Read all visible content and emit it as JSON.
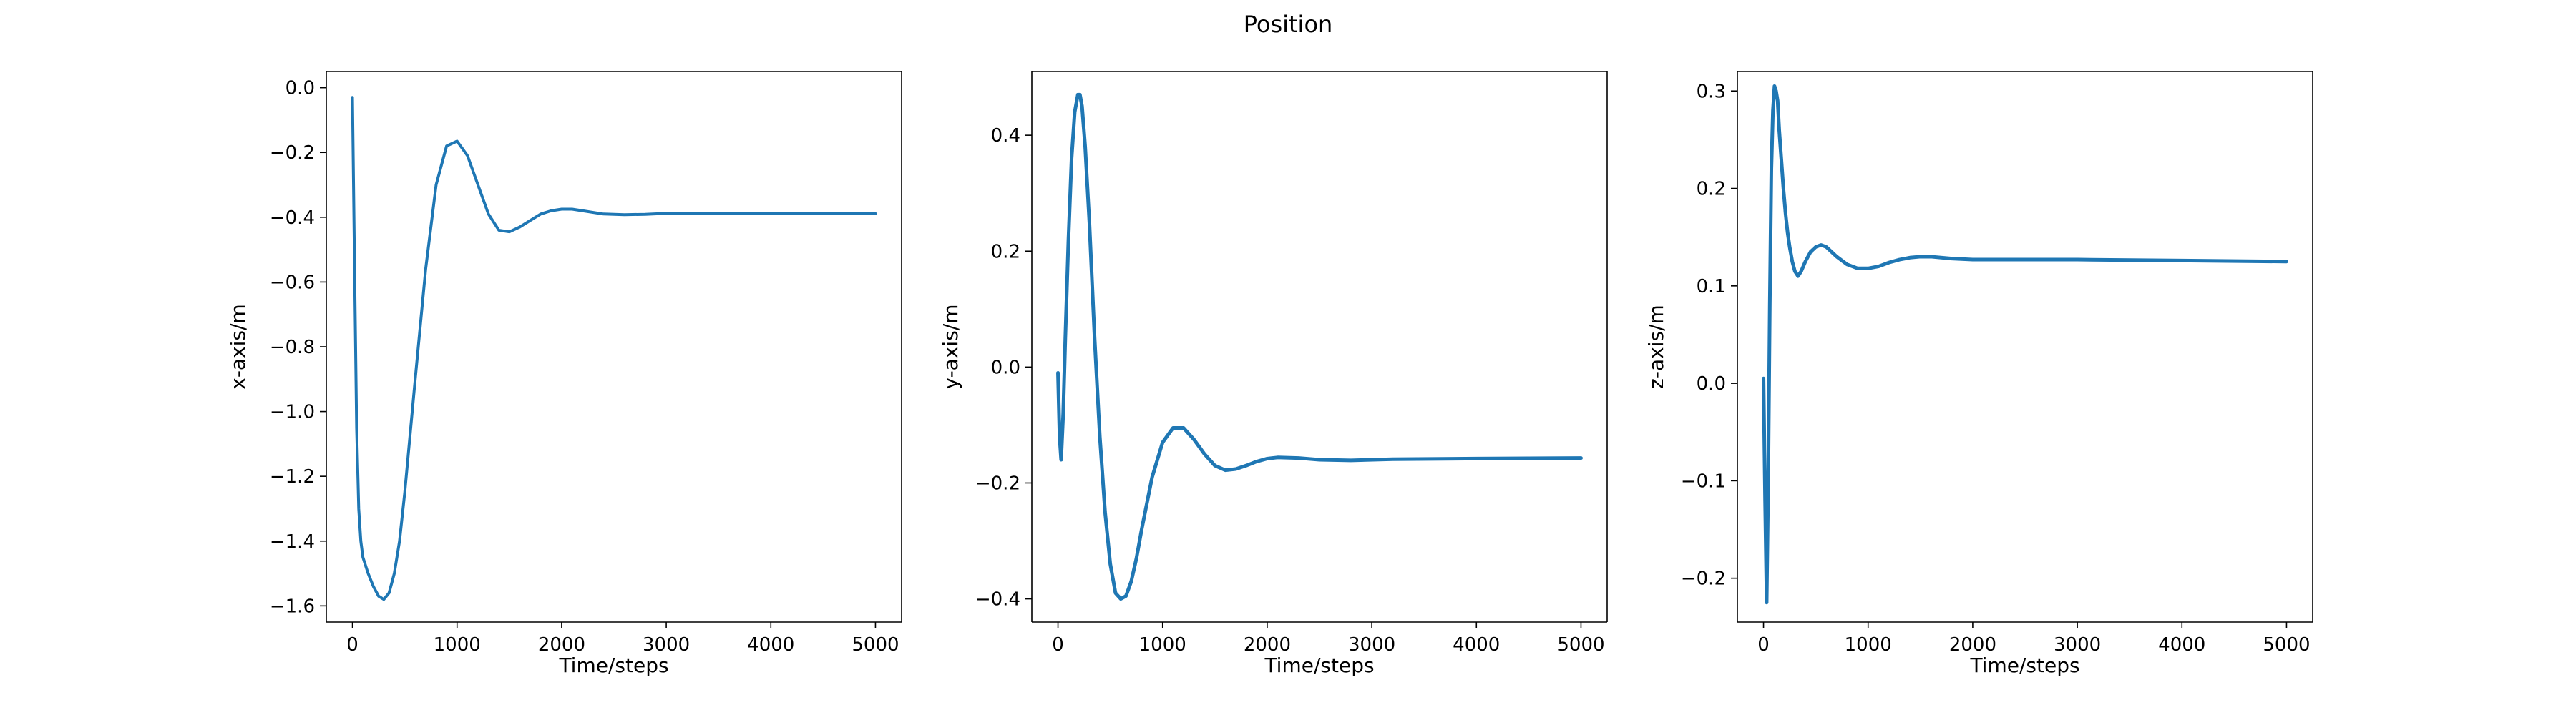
{
  "figure": {
    "title": "Position"
  },
  "chart_data": [
    {
      "type": "line",
      "xlabel": "Time/steps",
      "ylabel": "x-axis/m",
      "xlim": [
        -250,
        5250
      ],
      "ylim": [
        -1.65,
        0.05
      ],
      "xticks": [
        0,
        1000,
        2000,
        3000,
        4000,
        5000
      ],
      "xtick_labels": [
        "0",
        "1000",
        "2000",
        "3000",
        "4000",
        "5000"
      ],
      "yticks": [
        -1.6,
        -1.4,
        -1.2,
        -1.0,
        -0.8,
        -0.6,
        -0.4,
        -0.2,
        0.0
      ],
      "ytick_labels": [
        "−1.6",
        "−1.4",
        "−1.2",
        "−1.0",
        "−0.8",
        "−0.6",
        "−0.4",
        "−0.2",
        "0.0"
      ],
      "grid": false,
      "series": [
        {
          "color": "#1f77b4",
          "x": [
            0,
            20,
            40,
            60,
            80,
            100,
            150,
            200,
            250,
            300,
            350,
            400,
            450,
            500,
            600,
            700,
            800,
            900,
            1000,
            1100,
            1200,
            1300,
            1400,
            1500,
            1600,
            1700,
            1800,
            1900,
            2000,
            2100,
            2200,
            2400,
            2600,
            2800,
            3000,
            3200,
            3500,
            4000,
            4500,
            5000
          ],
          "y": [
            -0.03,
            -0.55,
            -1.05,
            -1.3,
            -1.4,
            -1.45,
            -1.5,
            -1.54,
            -1.57,
            -1.58,
            -1.56,
            -1.5,
            -1.4,
            -1.25,
            -0.9,
            -0.56,
            -0.3,
            -0.18,
            -0.165,
            -0.21,
            -0.3,
            -0.39,
            -0.44,
            -0.445,
            -0.43,
            -0.41,
            -0.39,
            -0.38,
            -0.375,
            -0.375,
            -0.38,
            -0.39,
            -0.392,
            -0.391,
            -0.388,
            -0.388,
            -0.389,
            -0.389,
            -0.389,
            -0.389
          ]
        }
      ]
    },
    {
      "type": "line",
      "xlabel": "Time/steps",
      "ylabel": "y-axis/m",
      "xlim": [
        -250,
        5250
      ],
      "ylim": [
        -0.44,
        0.51
      ],
      "xticks": [
        0,
        1000,
        2000,
        3000,
        4000,
        5000
      ],
      "xtick_labels": [
        "0",
        "1000",
        "2000",
        "3000",
        "4000",
        "5000"
      ],
      "yticks": [
        -0.4,
        -0.2,
        0.0,
        0.2,
        0.4
      ],
      "ytick_labels": [
        "−0.4",
        "−0.2",
        "0.0",
        "0.2",
        "0.4"
      ],
      "grid": false,
      "series": [
        {
          "color": "#1f77b4",
          "x": [
            0,
            15,
            30,
            50,
            70,
            100,
            130,
            160,
            190,
            210,
            230,
            260,
            300,
            350,
            400,
            450,
            500,
            550,
            600,
            650,
            700,
            750,
            800,
            900,
            1000,
            1100,
            1200,
            1300,
            1400,
            1500,
            1600,
            1700,
            1800,
            1900,
            2000,
            2100,
            2300,
            2500,
            2800,
            3200,
            4000,
            5000
          ],
          "y": [
            -0.01,
            -0.12,
            -0.16,
            -0.08,
            0.05,
            0.22,
            0.36,
            0.44,
            0.47,
            0.47,
            0.45,
            0.38,
            0.25,
            0.05,
            -0.12,
            -0.25,
            -0.34,
            -0.39,
            -0.4,
            -0.395,
            -0.37,
            -0.33,
            -0.28,
            -0.19,
            -0.13,
            -0.105,
            -0.105,
            -0.125,
            -0.15,
            -0.17,
            -0.178,
            -0.176,
            -0.17,
            -0.163,
            -0.158,
            -0.156,
            -0.157,
            -0.16,
            -0.161,
            -0.159,
            -0.158,
            -0.157
          ]
        }
      ]
    },
    {
      "type": "line",
      "xlabel": "Time/steps",
      "ylabel": "z-axis/m",
      "xlim": [
        -250,
        5250
      ],
      "ylim": [
        -0.245,
        0.32
      ],
      "xticks": [
        0,
        1000,
        2000,
        3000,
        4000,
        5000
      ],
      "xtick_labels": [
        "0",
        "1000",
        "2000",
        "3000",
        "4000",
        "5000"
      ],
      "yticks": [
        -0.2,
        -0.1,
        0.0,
        0.1,
        0.2,
        0.3
      ],
      "ytick_labels": [
        "−0.2",
        "−0.1",
        "0.0",
        "0.1",
        "0.2",
        "0.3"
      ],
      "grid": false,
      "series": [
        {
          "color": "#1f77b4",
          "x": [
            0,
            15,
            30,
            45,
            60,
            75,
            90,
            105,
            120,
            135,
            150,
            170,
            190,
            210,
            230,
            250,
            275,
            300,
            330,
            360,
            400,
            450,
            500,
            550,
            600,
            650,
            700,
            800,
            900,
            1000,
            1100,
            1200,
            1300,
            1400,
            1500,
            1600,
            1800,
            2000,
            2300,
            2600,
            3000,
            4000,
            5000
          ],
          "y": [
            0.005,
            -0.12,
            -0.225,
            -0.1,
            0.08,
            0.22,
            0.28,
            0.305,
            0.3,
            0.29,
            0.26,
            0.23,
            0.2,
            0.175,
            0.155,
            0.14,
            0.125,
            0.115,
            0.11,
            0.115,
            0.125,
            0.135,
            0.14,
            0.142,
            0.14,
            0.135,
            0.13,
            0.122,
            0.118,
            0.118,
            0.12,
            0.124,
            0.127,
            0.129,
            0.13,
            0.13,
            0.128,
            0.127,
            0.127,
            0.127,
            0.127,
            0.126,
            0.125
          ]
        }
      ]
    }
  ]
}
